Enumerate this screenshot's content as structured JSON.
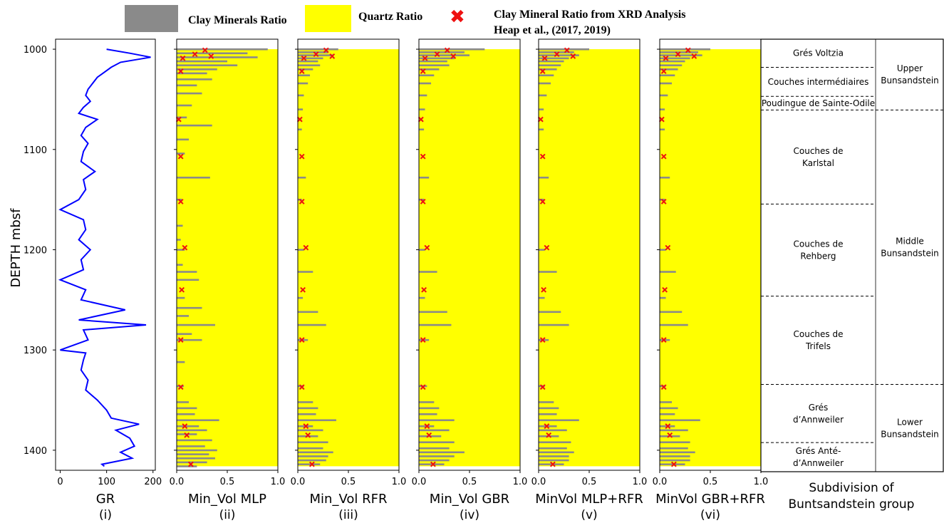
{
  "legend": {
    "clay_label": "Clay Minerals Ratio",
    "quartz_label": "Quartz Ratio",
    "xrd_label_line1": "Clay Mineral Ratio from XRD Analysis",
    "xrd_label_line2": "Heap et al., (2017, 2019)",
    "colors": {
      "clay": "#8a8a8a",
      "quartz": "#ffff00",
      "xrd": "#ee1111",
      "gr": "#0000ff"
    }
  },
  "chart_data": {
    "type": "line",
    "ylabel": "DEPTH mbsf",
    "ylim": [
      1420,
      990
    ],
    "yticks": [
      "1000",
      "1100",
      "1200",
      "1300",
      "1400"
    ],
    "depth_top": 1000,
    "depth_bottom": 1416,
    "panels": [
      {
        "id": "gr",
        "kind": "line",
        "xlabel_line1": "GR",
        "xlabel_line2": "(i)",
        "xlim": [
          -10,
          205
        ],
        "xticks": [
          "0",
          "100",
          "200"
        ],
        "xtick_values": [
          0,
          100,
          200
        ],
        "depth": [
          1000,
          1004,
          1008,
          1013,
          1018,
          1023,
          1028,
          1034,
          1040,
          1046,
          1052,
          1058,
          1064,
          1070,
          1078,
          1086,
          1094,
          1102,
          1112,
          1122,
          1130,
          1140,
          1150,
          1160,
          1170,
          1180,
          1190,
          1200,
          1210,
          1220,
          1230,
          1240,
          1250,
          1260,
          1270,
          1275,
          1280,
          1290,
          1300,
          1303,
          1310,
          1320,
          1330,
          1340,
          1350,
          1360,
          1368,
          1374,
          1380,
          1388,
          1396,
          1402,
          1408,
          1414,
          1416
        ],
        "values": [
          100,
          150,
          195,
          130,
          110,
          95,
          80,
          70,
          60,
          55,
          65,
          50,
          40,
          80,
          55,
          45,
          60,
          50,
          45,
          75,
          50,
          55,
          40,
          0,
          50,
          55,
          40,
          65,
          45,
          50,
          0,
          55,
          45,
          140,
          40,
          185,
          50,
          60,
          0,
          55,
          50,
          45,
          60,
          55,
          80,
          100,
          110,
          170,
          120,
          150,
          160,
          130,
          155,
          90,
          95
        ]
      },
      {
        "id": "mlp",
        "kind": "ratio",
        "xlabel_line1": "Min_Vol MLP",
        "xlabel_line2": "(ii)",
        "xlim": [
          0,
          1
        ],
        "xticks": [
          "0.0",
          "0.5",
          "1.0"
        ],
        "xtick_values": [
          0,
          0.5,
          1
        ],
        "clay_depth": [
          1000,
          1004,
          1008,
          1012,
          1016,
          1020,
          1024,
          1030,
          1036,
          1044,
          1056,
          1068,
          1076,
          1090,
          1104,
          1128,
          1150,
          1176,
          1190,
          1200,
          1215,
          1222,
          1230,
          1248,
          1258,
          1266,
          1275,
          1284,
          1290,
          1312,
          1336,
          1352,
          1358,
          1364,
          1370,
          1376,
          1380,
          1384,
          1390,
          1396,
          1400,
          1404,
          1408,
          1412,
          1416
        ],
        "clay_values": [
          0.9,
          0.7,
          0.8,
          0.5,
          0.6,
          0.4,
          0.3,
          0.35,
          0.2,
          0.25,
          0.15,
          0.1,
          0.35,
          0.12,
          0.08,
          0.33,
          0.05,
          0.06,
          0.04,
          0.08,
          0.06,
          0.2,
          0.22,
          0.08,
          0.25,
          0.12,
          0.38,
          0.15,
          0.25,
          0.08,
          0.07,
          0.12,
          0.2,
          0.18,
          0.42,
          0.22,
          0.3,
          0.2,
          0.35,
          0.28,
          0.4,
          0.32,
          0.38,
          0.3,
          0.2
        ]
      },
      {
        "id": "rfr",
        "kind": "ratio",
        "xlabel_line1": "Min_Vol RFR",
        "xlabel_line2": "(iii)",
        "xlim": [
          0,
          1
        ],
        "xticks": [
          "0.0",
          "0.5",
          "1.0"
        ],
        "xtick_values": [
          0,
          0.5,
          1
        ],
        "clay_depth": [
          1000,
          1003,
          1006,
          1009,
          1012,
          1016,
          1020,
          1026,
          1034,
          1046,
          1060,
          1080,
          1128,
          1150,
          1200,
          1222,
          1248,
          1262,
          1275,
          1290,
          1336,
          1352,
          1358,
          1364,
          1370,
          1376,
          1380,
          1386,
          1392,
          1398,
          1402,
          1406,
          1410,
          1414
        ],
        "clay_values": [
          0.4,
          0.3,
          0.35,
          0.25,
          0.2,
          0.22,
          0.15,
          0.12,
          0.1,
          0.06,
          0.05,
          0.04,
          0.08,
          0.04,
          0.06,
          0.15,
          0.05,
          0.2,
          0.28,
          0.1,
          0.06,
          0.15,
          0.2,
          0.18,
          0.38,
          0.15,
          0.25,
          0.2,
          0.3,
          0.25,
          0.35,
          0.3,
          0.28,
          0.22
        ]
      },
      {
        "id": "gbr",
        "kind": "ratio",
        "xlabel_line1": "Min_Vol GBR",
        "xlabel_line2": "(iv)",
        "xlim": [
          0,
          1
        ],
        "xticks": [
          "0.0",
          "0.5",
          "1.0"
        ],
        "xtick_values": [
          0,
          0.5,
          1
        ],
        "clay_depth": [
          1000,
          1003,
          1006,
          1009,
          1012,
          1016,
          1020,
          1026,
          1034,
          1046,
          1060,
          1080,
          1128,
          1150,
          1200,
          1222,
          1248,
          1262,
          1275,
          1290,
          1336,
          1352,
          1358,
          1364,
          1370,
          1376,
          1380,
          1386,
          1392,
          1398,
          1402,
          1406,
          1410,
          1414
        ],
        "clay_values": [
          0.65,
          0.45,
          0.5,
          0.35,
          0.28,
          0.3,
          0.2,
          0.15,
          0.12,
          0.08,
          0.06,
          0.05,
          0.1,
          0.05,
          0.06,
          0.18,
          0.06,
          0.28,
          0.32,
          0.1,
          0.08,
          0.15,
          0.2,
          0.18,
          0.35,
          0.15,
          0.3,
          0.22,
          0.35,
          0.3,
          0.45,
          0.35,
          0.3,
          0.25
        ]
      },
      {
        "id": "mlp_rfr",
        "kind": "ratio",
        "xlabel_line1": "MinVol MLP+RFR",
        "xlabel_line2": "(v)",
        "xlim": [
          0,
          1
        ],
        "xticks": [
          "0.0",
          "0.5",
          "1.0"
        ],
        "xtick_values": [
          0,
          0.5,
          1
        ],
        "clay_depth": [
          1000,
          1003,
          1006,
          1009,
          1012,
          1016,
          1020,
          1026,
          1034,
          1046,
          1060,
          1080,
          1128,
          1150,
          1200,
          1222,
          1248,
          1262,
          1275,
          1290,
          1336,
          1352,
          1358,
          1364,
          1370,
          1376,
          1380,
          1386,
          1392,
          1398,
          1402,
          1406,
          1410,
          1414
        ],
        "clay_values": [
          0.5,
          0.35,
          0.4,
          0.3,
          0.25,
          0.22,
          0.18,
          0.15,
          0.12,
          0.08,
          0.05,
          0.05,
          0.1,
          0.05,
          0.06,
          0.18,
          0.06,
          0.22,
          0.3,
          0.1,
          0.06,
          0.15,
          0.2,
          0.18,
          0.4,
          0.18,
          0.28,
          0.2,
          0.32,
          0.28,
          0.35,
          0.3,
          0.3,
          0.25
        ]
      },
      {
        "id": "gbr_rfr",
        "kind": "ratio",
        "xlabel_line1": "MinVol GBR+RFR",
        "xlabel_line2": "(vi)",
        "xlim": [
          0,
          1
        ],
        "xticks": [
          "0.0",
          "0.5",
          "1.0"
        ],
        "xtick_values": [
          0,
          0.5,
          1
        ],
        "clay_depth": [
          1000,
          1003,
          1006,
          1009,
          1012,
          1016,
          1020,
          1026,
          1034,
          1046,
          1060,
          1080,
          1128,
          1150,
          1200,
          1222,
          1248,
          1262,
          1275,
          1290,
          1336,
          1352,
          1358,
          1364,
          1370,
          1376,
          1380,
          1386,
          1392,
          1398,
          1402,
          1406,
          1410,
          1414
        ],
        "clay_values": [
          0.5,
          0.38,
          0.42,
          0.3,
          0.25,
          0.22,
          0.18,
          0.15,
          0.12,
          0.08,
          0.05,
          0.05,
          0.1,
          0.05,
          0.06,
          0.16,
          0.06,
          0.22,
          0.28,
          0.1,
          0.06,
          0.12,
          0.18,
          0.15,
          0.4,
          0.15,
          0.28,
          0.2,
          0.3,
          0.28,
          0.35,
          0.3,
          0.3,
          0.25
        ]
      }
    ],
    "xrd_points": {
      "depth": [
        1001,
        1005,
        1007,
        1009,
        1022,
        1070,
        1107,
        1152,
        1198,
        1240,
        1290,
        1337,
        1376,
        1385,
        1414
      ],
      "mlp": [
        0.28,
        0.18,
        0.34,
        0.06,
        0.04,
        0.02,
        0.04,
        0.04,
        0.08,
        0.05,
        0.04,
        0.04,
        0.08,
        0.1,
        0.14
      ],
      "rfr": [
        0.28,
        0.18,
        0.34,
        0.06,
        0.04,
        0.02,
        0.04,
        0.04,
        0.08,
        0.05,
        0.04,
        0.04,
        0.08,
        0.1,
        0.14
      ],
      "gbr": [
        0.28,
        0.18,
        0.34,
        0.06,
        0.04,
        0.02,
        0.04,
        0.04,
        0.08,
        0.05,
        0.04,
        0.04,
        0.08,
        0.1,
        0.14
      ],
      "mlp_rfr": [
        0.28,
        0.18,
        0.34,
        0.06,
        0.04,
        0.02,
        0.04,
        0.04,
        0.08,
        0.05,
        0.04,
        0.04,
        0.08,
        0.1,
        0.14
      ],
      "gbr_rfr": [
        0.28,
        0.18,
        0.34,
        0.06,
        0.04,
        0.02,
        0.04,
        0.04,
        0.08,
        0.05,
        0.04,
        0.04,
        0.08,
        0.1,
        0.14
      ]
    }
  },
  "subdivision": {
    "title_line1": "Subdivision of",
    "title_line2": "Buntsandstein group",
    "formations": [
      {
        "name_lines": [
          "Grés Voltzia"
        ],
        "top": 990,
        "bottom": 1019
      },
      {
        "name_lines": [
          "Couches intermédiaires"
        ],
        "top": 1019,
        "bottom": 1049
      },
      {
        "name_lines": [
          "Poudingue de Sainte-Odile"
        ],
        "top": 1049,
        "bottom": 1063
      },
      {
        "name_lines": [
          "Couches de",
          "Karlstal"
        ],
        "top": 1063,
        "bottom": 1160
      },
      {
        "name_lines": [
          "Couches de",
          "Rehberg"
        ],
        "top": 1160,
        "bottom": 1255
      },
      {
        "name_lines": [
          "Couches de",
          "Trifels"
        ],
        "top": 1255,
        "bottom": 1346
      },
      {
        "name_lines": [
          "Grés",
          "d’Annweiler"
        ],
        "top": 1346,
        "bottom": 1406
      },
      {
        "name_lines": [
          "Grés Anté-",
          "d’Annweiler"
        ],
        "top": 1406,
        "bottom": 1436
      }
    ],
    "groups": [
      {
        "name_lines": [
          "Upper",
          "Bunsandstein"
        ],
        "top": 990,
        "bottom": 1063
      },
      {
        "name_lines": [
          "Middle",
          "Bunsandstein"
        ],
        "top": 1063,
        "bottom": 1346
      },
      {
        "name_lines": [
          "Lower",
          "Bunsandstein"
        ],
        "top": 1346,
        "bottom": 1436
      }
    ]
  }
}
